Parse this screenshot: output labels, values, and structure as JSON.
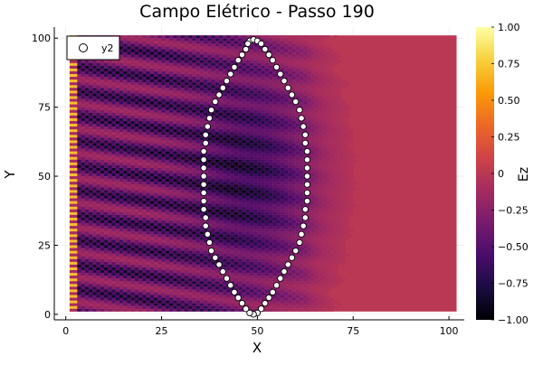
{
  "chart_data": {
    "type": "heatmap",
    "title": "Campo Elétrico - Passo 190",
    "xlabel": "X",
    "ylabel": "Y",
    "xlim": [
      -3,
      104
    ],
    "ylim": [
      -2,
      104
    ],
    "x_ticks": [
      0,
      25,
      50,
      75,
      100
    ],
    "y_ticks": [
      0,
      25,
      50,
      75,
      100
    ],
    "grid": true,
    "field_extent": {
      "x": [
        1,
        102
      ],
      "y": [
        1,
        101
      ]
    },
    "colorbar": {
      "label": "Ez",
      "min": -1.0,
      "max": 1.0,
      "ticks": [
        1.0,
        0.75,
        0.5,
        0.25,
        0,
        -0.25,
        -0.5,
        -0.75,
        -1.0
      ],
      "tick_labels": [
        "1.00",
        "0.75",
        "0.50",
        "0.25",
        "0",
        "−0.25",
        "−0.50",
        "−0.75",
        "−1.00"
      ],
      "colormap": "inferno",
      "colors": [
        "#000004",
        "#1b0c41",
        "#4a0c6b",
        "#781c6d",
        "#a52c60",
        "#cf4446",
        "#ed6925",
        "#fb9b06",
        "#f7d13d",
        "#fcffa4"
      ]
    },
    "legend": {
      "placement": "top-left",
      "entries": [
        {
          "name": "y2",
          "marker": "circle-white"
        }
      ]
    },
    "series": [
      {
        "name": "y2",
        "type": "scatter",
        "points": [
          [
            48,
            99
          ],
          [
            49,
            99.5
          ],
          [
            50,
            99
          ],
          [
            51,
            98
          ],
          [
            52,
            96
          ],
          [
            53,
            94
          ],
          [
            54,
            92
          ],
          [
            55,
            89.5
          ],
          [
            56,
            87
          ],
          [
            57,
            84.5
          ],
          [
            58,
            82
          ],
          [
            59,
            79.5
          ],
          [
            60,
            77
          ],
          [
            61,
            74
          ],
          [
            61.5,
            71
          ],
          [
            62,
            68
          ],
          [
            62.5,
            65
          ],
          [
            62.5,
            62
          ],
          [
            63,
            59
          ],
          [
            63,
            56
          ],
          [
            63,
            53
          ],
          [
            63,
            50
          ],
          [
            63,
            47
          ],
          [
            63,
            44
          ],
          [
            63,
            41
          ],
          [
            62.5,
            38
          ],
          [
            62.5,
            35
          ],
          [
            62,
            32
          ],
          [
            61.5,
            29
          ],
          [
            61,
            26
          ],
          [
            60,
            23
          ],
          [
            59,
            20.5
          ],
          [
            58,
            18
          ],
          [
            57,
            15.5
          ],
          [
            56,
            13
          ],
          [
            55,
            10.5
          ],
          [
            54,
            8
          ],
          [
            53,
            6
          ],
          [
            52,
            4
          ],
          [
            51,
            2
          ],
          [
            50,
            0.5
          ],
          [
            49,
            0
          ],
          [
            48,
            0.5
          ],
          [
            47,
            2
          ],
          [
            46,
            4
          ],
          [
            45,
            6
          ],
          [
            44,
            8
          ],
          [
            43,
            10.5
          ],
          [
            42,
            13
          ],
          [
            41,
            15.5
          ],
          [
            40,
            18
          ],
          [
            39,
            20.5
          ],
          [
            38,
            23
          ],
          [
            37.5,
            26
          ],
          [
            37,
            29
          ],
          [
            36.5,
            32
          ],
          [
            36.5,
            35
          ],
          [
            36,
            38
          ],
          [
            36,
            41
          ],
          [
            36,
            44
          ],
          [
            36,
            47
          ],
          [
            36,
            50
          ],
          [
            36,
            53
          ],
          [
            36,
            56
          ],
          [
            36,
            59
          ],
          [
            36.5,
            62
          ],
          [
            36.5,
            65
          ],
          [
            37,
            68
          ],
          [
            37.5,
            71
          ],
          [
            38,
            74
          ],
          [
            39,
            77
          ],
          [
            40,
            79.5
          ],
          [
            41,
            82
          ],
          [
            42,
            84.5
          ],
          [
            43,
            87
          ],
          [
            44,
            89.5
          ],
          [
            45,
            92
          ],
          [
            46,
            94
          ],
          [
            47,
            96
          ],
          [
            47.5,
            98
          ]
        ]
      }
    ]
  }
}
